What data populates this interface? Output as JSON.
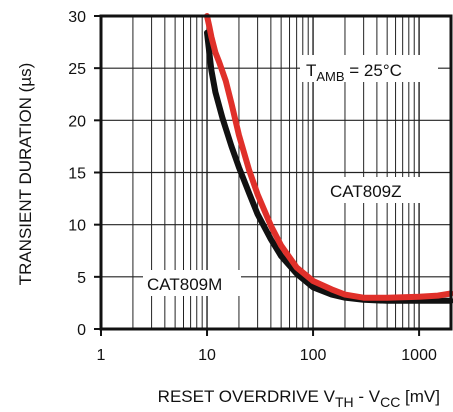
{
  "chart_data": {
    "type": "line",
    "xscale": "log",
    "xlim": [
      1,
      2000
    ],
    "ylim": [
      0,
      30
    ],
    "grid": true,
    "ylabel": "TRANSIENT DURATION (µs)",
    "xlabel": {
      "prefix": "RESET OVERDRIVE V",
      "sub1": "TH",
      "middle": " - V",
      "sub2": "CC",
      "suffix": " [mV]"
    },
    "x_tick_labels": [
      "1",
      "10",
      "100",
      "1000"
    ],
    "y_tick_labels": [
      "0",
      "5",
      "10",
      "15",
      "20",
      "25",
      "30"
    ],
    "annotation": {
      "prefix": "T",
      "sub": "AMB",
      "suffix": " = 25°C"
    },
    "series": [
      {
        "name": "CAT809M",
        "color": "#111111",
        "x": [
          10,
          10.5,
          11,
          12,
          14,
          17,
          20,
          25,
          30,
          40,
          50,
          70,
          100,
          150,
          200,
          300,
          500,
          1000,
          2000
        ],
        "y": [
          28.4,
          26.5,
          24.8,
          22.7,
          20.2,
          17.5,
          15.5,
          13.0,
          11.0,
          8.6,
          7.0,
          5.3,
          4.0,
          3.3,
          3.0,
          2.8,
          2.7,
          2.7,
          2.7
        ]
      },
      {
        "name": "CAT809Z",
        "color": "#e0302a",
        "x": [
          10,
          10.5,
          11,
          12,
          13,
          15,
          17,
          20,
          25,
          30,
          40,
          50,
          70,
          100,
          150,
          200,
          300,
          500,
          1000,
          1500,
          2000
        ],
        "y": [
          30.0,
          29.0,
          28.0,
          26.5,
          25.6,
          23.8,
          21.6,
          18.6,
          15.2,
          12.9,
          9.9,
          8.0,
          5.9,
          4.6,
          3.8,
          3.3,
          3.0,
          3.0,
          3.1,
          3.2,
          3.4
        ]
      }
    ]
  }
}
